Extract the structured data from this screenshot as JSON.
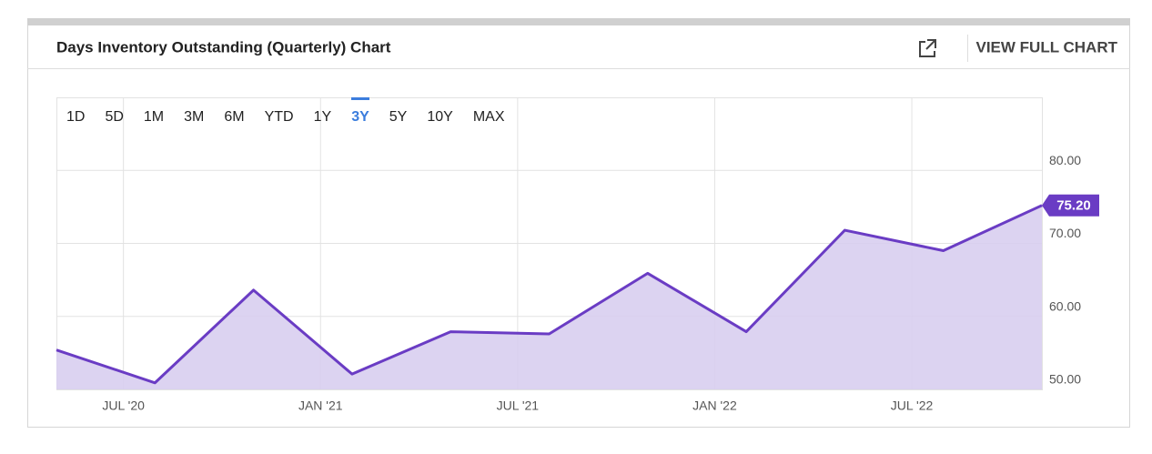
{
  "header": {
    "title": "Days Inventory Outstanding (Quarterly) Chart",
    "action": "VIEW FULL CHART"
  },
  "range_buttons": {
    "labels": [
      "1D",
      "5D",
      "1M",
      "3M",
      "6M",
      "YTD",
      "1Y",
      "3Y",
      "5Y",
      "10Y",
      "MAX"
    ],
    "selected": 7
  },
  "chart_data": {
    "type": "area",
    "x": [
      0,
      1,
      2,
      3,
      4,
      5,
      6,
      7,
      8,
      9,
      10
    ],
    "values": [
      55.4,
      50.9,
      63.6,
      52.1,
      57.9,
      57.6,
      65.9,
      57.9,
      71.8,
      69.0,
      75.2
    ],
    "value_labels": [
      null,
      null,
      null,
      null,
      null,
      null,
      null,
      null,
      null,
      null,
      "75.20"
    ],
    "color": "#6a3cc4",
    "fill": "#d8cef0",
    "xlim": [
      0,
      10
    ],
    "xticks": [
      {
        "value": 0.68,
        "label": "JUL '20"
      },
      {
        "value": 2.68,
        "label": "JAN '21"
      },
      {
        "value": 4.68,
        "label": "JUL '21"
      },
      {
        "value": 6.68,
        "label": "JAN '22"
      },
      {
        "value": 8.68,
        "label": "JUL '22"
      }
    ],
    "ylim": [
      50,
      90
    ],
    "yticks": [
      {
        "value": 50,
        "label": "50.00"
      },
      {
        "value": 60,
        "label": "60.00"
      },
      {
        "value": 70,
        "label": "70.00"
      },
      {
        "value": 80,
        "label": "80.00"
      }
    ],
    "grid": true
  }
}
